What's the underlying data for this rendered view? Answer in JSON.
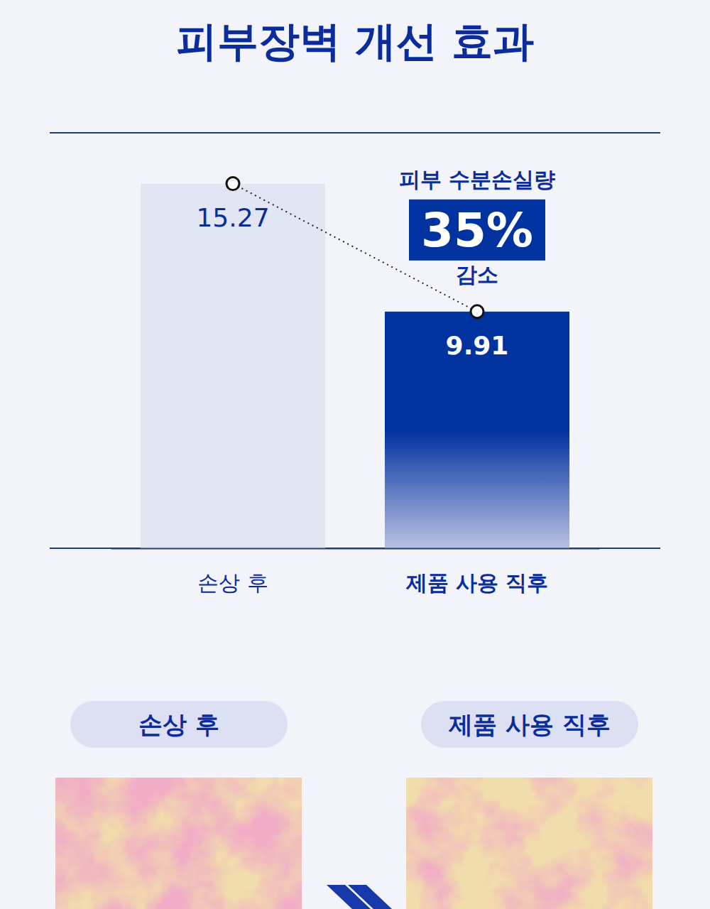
{
  "chart_data": {
    "type": "bar",
    "title": "피부장벽 개선 효과",
    "categories": [
      "손상 후",
      "제품 사용 직후"
    ],
    "values": [
      15.27,
      9.91
    ],
    "colors": [
      "#e1e5f4",
      "#0032a0"
    ],
    "ylim": [
      0,
      17.4
    ],
    "data_labels": true,
    "tick_labels": "x",
    "grid": false,
    "annotation": {
      "label": "피부 수분손실량",
      "value": 35,
      "value_label": "35%",
      "text": "감소"
    }
  },
  "comparison": {
    "labels": [
      "손상 후",
      "제품 사용 직후"
    ]
  }
}
